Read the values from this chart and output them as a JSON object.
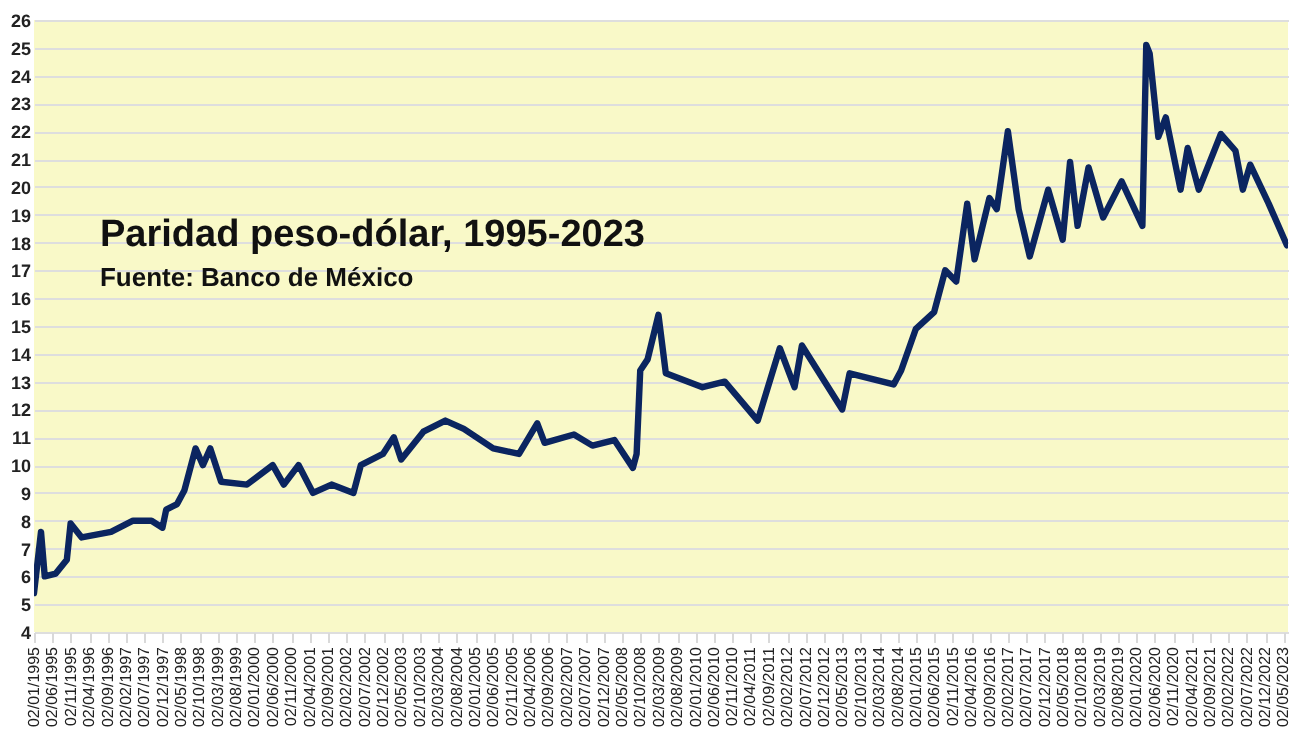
{
  "chart_data": {
    "type": "line",
    "title": "Paridad peso-dólar, 1995-2023",
    "subtitle": "Fuente: Banco de México",
    "x": [
      "1995-01-02",
      "1995-03-01",
      "1995-04-01",
      "1995-07-01",
      "1995-10-01",
      "1995-11-01",
      "1996-02-01",
      "1996-10-01",
      "1997-04-01",
      "1997-09-01",
      "1997-12-01",
      "1998-01-01",
      "1998-04-01",
      "1998-06-01",
      "1998-09-01",
      "1998-11-01",
      "1999-01-01",
      "1999-04-01",
      "1999-11-01",
      "2000-06-01",
      "2000-09-01",
      "2001-01-01",
      "2001-05-01",
      "2001-10-01",
      "2002-04-01",
      "2002-06-01",
      "2002-12-01",
      "2003-03-01",
      "2003-05-01",
      "2003-11-01",
      "2004-05-01",
      "2004-10-01",
      "2005-06-01",
      "2006-01-01",
      "2006-06-01",
      "2006-08-01",
      "2007-04-01",
      "2007-09-01",
      "2008-03-01",
      "2008-08-01",
      "2008-09-01",
      "2008-10-01",
      "2008-12-01",
      "2009-03-01",
      "2009-05-01",
      "2010-03-01",
      "2010-09-01",
      "2011-06-01",
      "2011-12-01",
      "2012-04-01",
      "2012-06-01",
      "2013-05-01",
      "2013-07-01",
      "2014-07-01",
      "2014-09-01",
      "2015-01-01",
      "2015-06-01",
      "2015-09-01",
      "2015-12-01",
      "2016-03-01",
      "2016-05-01",
      "2016-09-01",
      "2016-11-01",
      "2017-02-01",
      "2017-05-01",
      "2017-08-01",
      "2018-01-01",
      "2018-05-01",
      "2018-07-01",
      "2018-09-01",
      "2018-12-01",
      "2019-04-01",
      "2019-09-01",
      "2020-02-20",
      "2020-03-23",
      "2020-04-20",
      "2020-07-01",
      "2020-09-01",
      "2021-01-01",
      "2021-03-01",
      "2021-06-01",
      "2021-12-01",
      "2022-04-01",
      "2022-06-01",
      "2022-08-01",
      "2023-01-01",
      "2023-06-01"
    ],
    "series": [
      {
        "color": "#0b2560",
        "values": [
          5.4,
          7.6,
          6.0,
          6.1,
          6.6,
          7.9,
          7.4,
          7.6,
          8.0,
          8.0,
          7.75,
          8.4,
          8.6,
          9.1,
          10.6,
          10.0,
          10.6,
          9.4,
          9.3,
          10.0,
          9.3,
          10.0,
          9.0,
          9.3,
          9.0,
          10.0,
          10.4,
          11.0,
          10.2,
          11.2,
          11.6,
          11.3,
          10.6,
          10.4,
          11.5,
          10.8,
          11.1,
          10.7,
          10.9,
          9.9,
          10.4,
          13.4,
          13.8,
          15.4,
          13.3,
          12.8,
          13.0,
          11.6,
          14.2,
          12.8,
          14.3,
          12.0,
          13.3,
          12.9,
          13.4,
          14.9,
          15.5,
          17.0,
          16.6,
          19.4,
          17.4,
          19.6,
          19.2,
          22.0,
          19.2,
          17.5,
          19.9,
          18.1,
          20.9,
          18.6,
          20.7,
          18.9,
          20.2,
          18.6,
          25.1,
          24.8,
          21.8,
          22.5,
          19.9,
          21.4,
          19.9,
          21.9,
          21.3,
          19.9,
          20.8,
          19.4,
          17.9
        ]
      }
    ],
    "xlim": [
      "1995-01-02",
      "2023-06-10"
    ],
    "ylim": [
      4,
      26
    ],
    "yticks": [
      4,
      5,
      6,
      7,
      8,
      9,
      10,
      11,
      12,
      13,
      14,
      15,
      16,
      17,
      18,
      19,
      20,
      21,
      22,
      23,
      24,
      25,
      26
    ],
    "xticks": [
      {
        "value": "1995-01-02",
        "label": "02/01/1995"
      },
      {
        "value": "1995-06-02",
        "label": "02/06/1995"
      },
      {
        "value": "1995-11-02",
        "label": "02/11/1995"
      },
      {
        "value": "1996-04-02",
        "label": "02/04/1996"
      },
      {
        "value": "1996-09-02",
        "label": "02/09/1996"
      },
      {
        "value": "1997-02-02",
        "label": "02/02/1997"
      },
      {
        "value": "1997-07-02",
        "label": "02/07/1997"
      },
      {
        "value": "1997-12-02",
        "label": "02/12/1997"
      },
      {
        "value": "1998-05-02",
        "label": "02/05/1998"
      },
      {
        "value": "1998-10-02",
        "label": "02/10/1998"
      },
      {
        "value": "1999-03-02",
        "label": "02/03/1999"
      },
      {
        "value": "1999-08-02",
        "label": "02/08/1999"
      },
      {
        "value": "2000-01-02",
        "label": "02/01/2000"
      },
      {
        "value": "2000-06-02",
        "label": "02/06/2000"
      },
      {
        "value": "2000-11-02",
        "label": "02/11/2000"
      },
      {
        "value": "2001-04-02",
        "label": "02/04/2001"
      },
      {
        "value": "2001-09-02",
        "label": "02/09/2001"
      },
      {
        "value": "2002-02-02",
        "label": "02/02/2002"
      },
      {
        "value": "2002-07-02",
        "label": "02/07/2002"
      },
      {
        "value": "2002-12-02",
        "label": "02/12/2002"
      },
      {
        "value": "2003-05-02",
        "label": "02/05/2003"
      },
      {
        "value": "2003-10-02",
        "label": "02/10/2003"
      },
      {
        "value": "2004-03-02",
        "label": "02/03/2004"
      },
      {
        "value": "2004-08-02",
        "label": "02/08/2004"
      },
      {
        "value": "2005-01-02",
        "label": "02/01/2005"
      },
      {
        "value": "2005-06-02",
        "label": "02/06/2005"
      },
      {
        "value": "2005-11-02",
        "label": "02/11/2005"
      },
      {
        "value": "2006-04-02",
        "label": "02/04/2006"
      },
      {
        "value": "2006-09-02",
        "label": "02/09/2006"
      },
      {
        "value": "2007-02-02",
        "label": "02/02/2007"
      },
      {
        "value": "2007-07-02",
        "label": "02/07/2007"
      },
      {
        "value": "2007-12-02",
        "label": "02/12/2007"
      },
      {
        "value": "2008-05-02",
        "label": "02/05/2008"
      },
      {
        "value": "2008-10-02",
        "label": "02/10/2008"
      },
      {
        "value": "2009-03-02",
        "label": "02/03/2009"
      },
      {
        "value": "2009-08-02",
        "label": "02/08/2009"
      },
      {
        "value": "2010-01-02",
        "label": "02/01/2010"
      },
      {
        "value": "2010-06-02",
        "label": "02/06/2010"
      },
      {
        "value": "2010-11-02",
        "label": "02/11/2010"
      },
      {
        "value": "2011-04-02",
        "label": "02/04/2011"
      },
      {
        "value": "2011-09-02",
        "label": "02/09/2011"
      },
      {
        "value": "2012-02-02",
        "label": "02/02/2012"
      },
      {
        "value": "2012-07-02",
        "label": "02/07/2012"
      },
      {
        "value": "2012-12-02",
        "label": "02/12/2012"
      },
      {
        "value": "2013-05-02",
        "label": "02/05/2013"
      },
      {
        "value": "2013-10-02",
        "label": "02/10/2013"
      },
      {
        "value": "2014-03-02",
        "label": "02/03/2014"
      },
      {
        "value": "2014-08-02",
        "label": "02/08/2014"
      },
      {
        "value": "2015-01-02",
        "label": "02/01/2015"
      },
      {
        "value": "2015-06-02",
        "label": "02/06/2015"
      },
      {
        "value": "2015-11-02",
        "label": "02/11/2015"
      },
      {
        "value": "2016-04-02",
        "label": "02/04/2016"
      },
      {
        "value": "2016-09-02",
        "label": "02/09/2016"
      },
      {
        "value": "2017-02-02",
        "label": "02/02/2017"
      },
      {
        "value": "2017-07-02",
        "label": "02/07/2017"
      },
      {
        "value": "2017-12-02",
        "label": "02/12/2017"
      },
      {
        "value": "2018-05-02",
        "label": "02/05/2018"
      },
      {
        "value": "2018-10-02",
        "label": "02/10/2018"
      },
      {
        "value": "2019-03-02",
        "label": "02/03/2019"
      },
      {
        "value": "2019-08-02",
        "label": "02/08/2019"
      },
      {
        "value": "2020-01-02",
        "label": "02/01/2020"
      },
      {
        "value": "2020-06-02",
        "label": "02/06/2020"
      },
      {
        "value": "2020-11-02",
        "label": "02/11/2020"
      },
      {
        "value": "2021-04-02",
        "label": "02/04/2021"
      },
      {
        "value": "2021-09-02",
        "label": "02/09/2021"
      },
      {
        "value": "2022-02-02",
        "label": "02/02/2022"
      },
      {
        "value": "2022-07-02",
        "label": "02/07/2022"
      },
      {
        "value": "2022-12-02",
        "label": "02/12/2022"
      },
      {
        "value": "2023-05-02",
        "label": "02/05/2023"
      }
    ],
    "grid": "y"
  }
}
